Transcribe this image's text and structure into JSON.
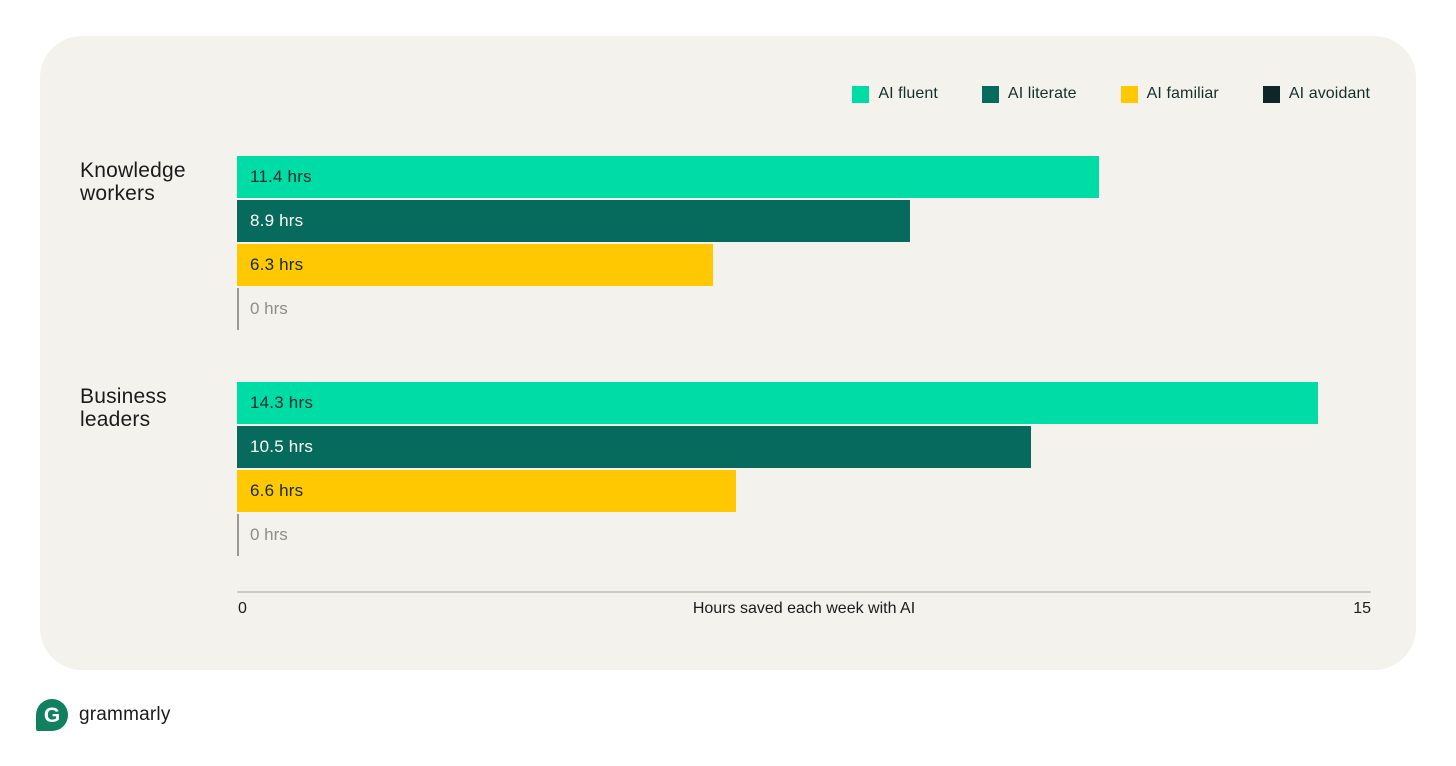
{
  "footer": {
    "brand": "grammarly"
  },
  "colors": {
    "page_bg": "#FFFFFF",
    "card_bg": "#F4F2ED",
    "mint": "#00DCA5",
    "dark_teal": "#066B5C",
    "yellow": "#FFC800",
    "avoidant_dark": "#0D2728",
    "axis_line": "#CCCAC5",
    "zero_tick": "#9B9995",
    "zero_text": "#8E8E8C",
    "text_dark": "#1B1B1B",
    "logo_green": "#10805E"
  },
  "chart_data": {
    "type": "bar",
    "orientation": "horizontal",
    "title": "",
    "xlabel": "Hours saved each week with AI",
    "xlim": [
      0,
      15
    ],
    "x_tick_labels": [
      "0",
      "15"
    ],
    "grid": false,
    "legend_position": "top-right",
    "categories": [
      "Knowledge workers",
      "Business leaders"
    ],
    "series": [
      {
        "name": "AI fluent",
        "color": "#00DCA5",
        "values": [
          11.4,
          14.3
        ],
        "labels": [
          "11.4 hrs",
          "14.3 hrs"
        ],
        "label_color": "#132C2B"
      },
      {
        "name": "AI literate",
        "color": "#066B5C",
        "values": [
          8.9,
          10.5
        ],
        "labels": [
          "8.9 hrs",
          "10.5 hrs"
        ],
        "label_color": "#FFFFFF"
      },
      {
        "name": "AI familiar",
        "color": "#FFC800",
        "values": [
          6.3,
          6.6
        ],
        "labels": [
          "6.3 hrs",
          "6.6 hrs"
        ],
        "label_color": "#132C2B"
      },
      {
        "name": "AI avoidant",
        "color": "#0D2728",
        "values": [
          0,
          0
        ],
        "labels": [
          "0 hrs",
          "0 hrs"
        ],
        "label_color": "#8E8E8C"
      }
    ],
    "layout": {
      "group_top_offsets": [
        120,
        346
      ],
      "row_pitch": 44
    }
  }
}
